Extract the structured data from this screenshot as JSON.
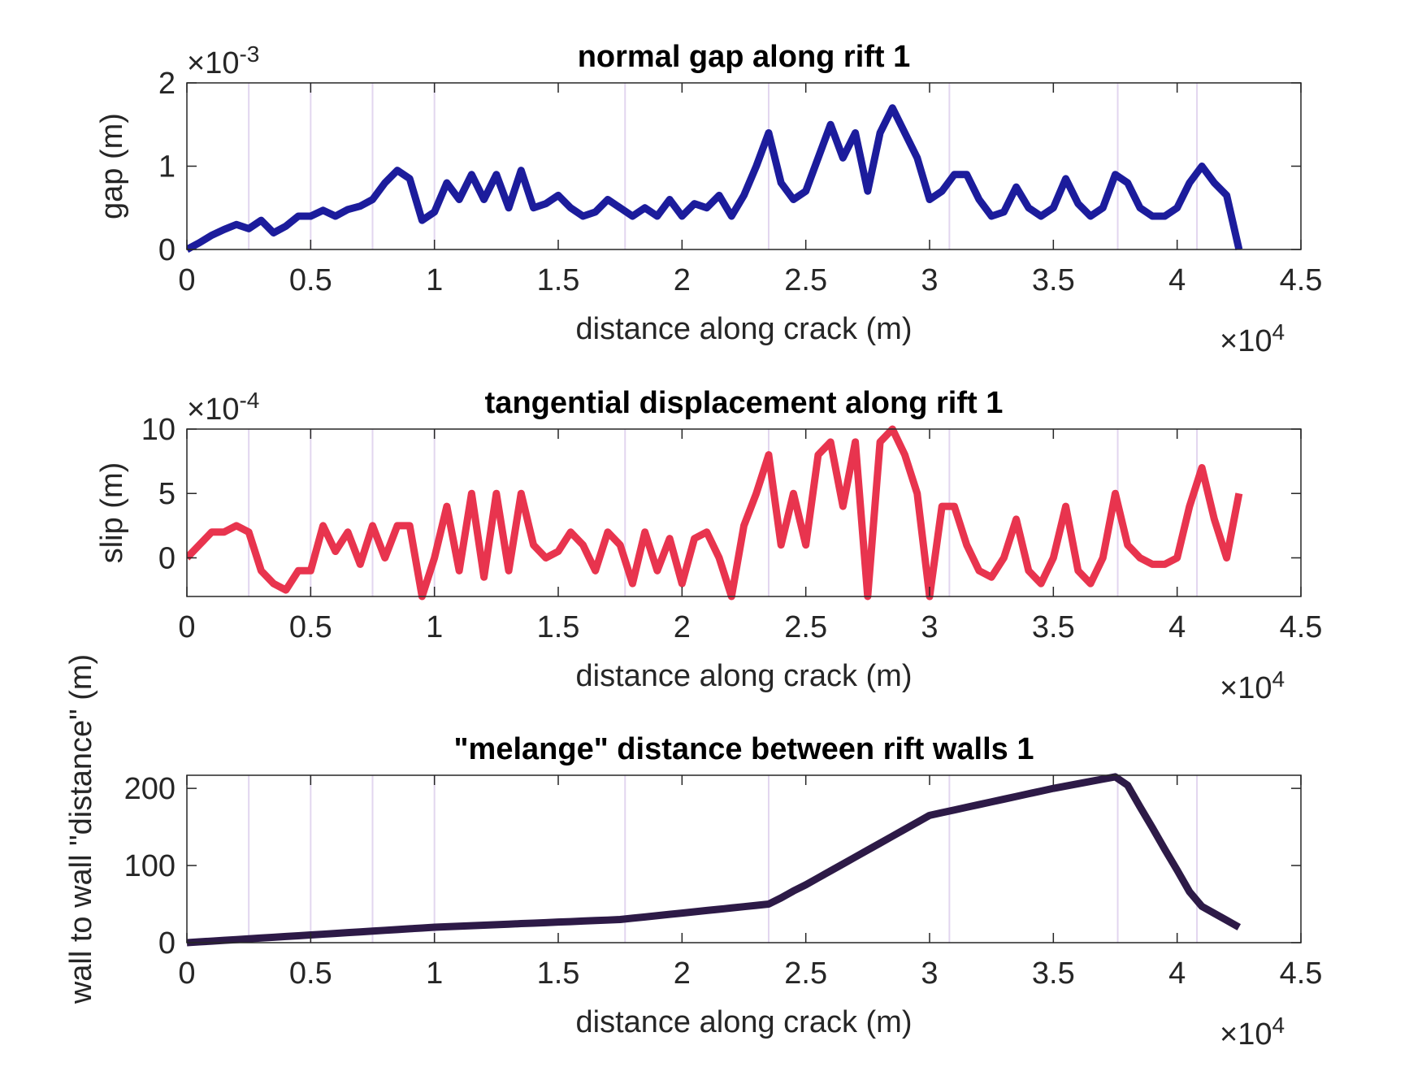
{
  "chart_data": [
    {
      "type": "line",
      "title": "normal gap along rift 1",
      "xlabel": "distance along crack (m)",
      "ylabel": "gap (m)",
      "x_exponent": {
        "base": "×10",
        "power": "4"
      },
      "y_exponent": {
        "base": "×10",
        "power": "-3"
      },
      "xlim": [
        0,
        45000
      ],
      "ylim": [
        0,
        0.002
      ],
      "xticks": [
        0,
        {
          "value": 5000,
          "label": "0.5"
        },
        {
          "value": 10000,
          "label": "1"
        },
        {
          "value": 15000,
          "label": "1.5"
        },
        {
          "value": 20000,
          "label": "2"
        },
        {
          "value": 25000,
          "label": "2.5"
        },
        {
          "value": 30000,
          "label": "3"
        },
        {
          "value": 35000,
          "label": "3.5"
        },
        {
          "value": 40000,
          "label": "4"
        },
        {
          "value": 45000,
          "label": "4.5"
        }
      ],
      "yticks": [
        0,
        {
          "value": 0.001,
          "label": "1"
        },
        {
          "value": 0.002,
          "label": "2"
        }
      ],
      "vlines": [
        2500,
        5000,
        7500,
        10000,
        17700,
        23500,
        30800,
        37600,
        40800
      ],
      "vline_color": "#e2d6ef",
      "x": [
        0,
        500,
        1000,
        1500,
        2000,
        2500,
        3000,
        3500,
        4000,
        4500,
        5000,
        5500,
        6000,
        6500,
        7000,
        7500,
        8000,
        8500,
        9000,
        9500,
        10000,
        10500,
        11000,
        11500,
        12000,
        12500,
        13000,
        13500,
        14000,
        14500,
        15000,
        15500,
        16000,
        16500,
        17000,
        17500,
        18000,
        18500,
        19000,
        19500,
        20000,
        20500,
        21000,
        21500,
        22000,
        22500,
        23000,
        23500,
        24000,
        24500,
        25000,
        25500,
        26000,
        26500,
        27000,
        27500,
        28000,
        28500,
        29000,
        29500,
        30000,
        30500,
        31000,
        31500,
        32000,
        32500,
        33000,
        33500,
        34000,
        34500,
        35000,
        35500,
        36000,
        36500,
        37000,
        37500,
        38000,
        38500,
        39000,
        39500,
        40000,
        40500,
        41000,
        41500,
        42000,
        42500
      ],
      "series": [
        {
          "color": "#1c1c9c",
          "values": [
            0,
            8e-05,
            0.00017,
            0.00024,
            0.0003,
            0.00025,
            0.00035,
            0.0002,
            0.00028,
            0.0004,
            0.0004,
            0.00047,
            0.0004,
            0.00048,
            0.00052,
            0.0006,
            0.0008,
            0.00095,
            0.00085,
            0.00035,
            0.00045,
            0.0008,
            0.0006,
            0.0009,
            0.0006,
            0.0009,
            0.0005,
            0.00095,
            0.0005,
            0.00055,
            0.00065,
            0.0005,
            0.0004,
            0.00045,
            0.0006,
            0.0005,
            0.0004,
            0.0005,
            0.0004,
            0.0006,
            0.0004,
            0.00055,
            0.0005,
            0.00065,
            0.0004,
            0.00065,
            0.001,
            0.0014,
            0.0008,
            0.0006,
            0.0007,
            0.0011,
            0.0015,
            0.0011,
            0.0014,
            0.0007,
            0.0014,
            0.0017,
            0.0014,
            0.0011,
            0.0006,
            0.0007,
            0.0009,
            0.0009,
            0.0006,
            0.0004,
            0.00045,
            0.00075,
            0.0005,
            0.0004,
            0.0005,
            0.00085,
            0.00055,
            0.0004,
            0.0005,
            0.0009,
            0.0008,
            0.0005,
            0.0004,
            0.0004,
            0.0005,
            0.0008,
            0.001,
            0.0008,
            0.00065,
            0
          ]
        }
      ]
    },
    {
      "type": "line",
      "title": "tangential displacement along rift 1",
      "xlabel": "distance along crack (m)",
      "ylabel": "slip (m)",
      "x_exponent": {
        "base": "×10",
        "power": "4"
      },
      "y_exponent": {
        "base": "×10",
        "power": "-4"
      },
      "xlim": [
        0,
        45000
      ],
      "ylim": [
        -0.0003,
        0.001
      ],
      "xticks": [
        0,
        {
          "value": 5000,
          "label": "0.5"
        },
        {
          "value": 10000,
          "label": "1"
        },
        {
          "value": 15000,
          "label": "1.5"
        },
        {
          "value": 20000,
          "label": "2"
        },
        {
          "value": 25000,
          "label": "2.5"
        },
        {
          "value": 30000,
          "label": "3"
        },
        {
          "value": 35000,
          "label": "3.5"
        },
        {
          "value": 40000,
          "label": "4"
        },
        {
          "value": 45000,
          "label": "4.5"
        }
      ],
      "yticks": [
        0,
        {
          "value": 0.0005,
          "label": "5"
        },
        {
          "value": 0.001,
          "label": "10"
        }
      ],
      "vlines": [
        2500,
        5000,
        7500,
        10000,
        17700,
        23500,
        30800,
        37600,
        40800
      ],
      "vline_color": "#e2d6ef",
      "x": [
        0,
        500,
        1000,
        1500,
        2000,
        2500,
        3000,
        3500,
        4000,
        4500,
        5000,
        5500,
        6000,
        6500,
        7000,
        7500,
        8000,
        8500,
        9000,
        9500,
        10000,
        10500,
        11000,
        11500,
        12000,
        12500,
        13000,
        13500,
        14000,
        14500,
        15000,
        15500,
        16000,
        16500,
        17000,
        17500,
        18000,
        18500,
        19000,
        19500,
        20000,
        20500,
        21000,
        21500,
        22000,
        22500,
        23000,
        23500,
        24000,
        24500,
        25000,
        25500,
        26000,
        26500,
        27000,
        27500,
        28000,
        28500,
        29000,
        29500,
        30000,
        30500,
        31000,
        31500,
        32000,
        32500,
        33000,
        33500,
        34000,
        34500,
        35000,
        35500,
        36000,
        36500,
        37000,
        37500,
        38000,
        38500,
        39000,
        39500,
        40000,
        40500,
        41000,
        41500,
        42000,
        42500
      ],
      "series": [
        {
          "color": "#e8344e",
          "values": [
            0,
            0.0001,
            0.0002,
            0.0002,
            0.00025,
            0.0002,
            -0.0001,
            -0.0002,
            -0.00025,
            -0.0001,
            -0.0001,
            0.00025,
            5e-05,
            0.0002,
            -5e-05,
            0.00025,
            0,
            0.00025,
            0.00025,
            -0.0003,
            0,
            0.0004,
            -0.0001,
            0.0005,
            -0.00015,
            0.0005,
            -0.0001,
            0.0005,
            0.0001,
            0,
            5e-05,
            0.0002,
            0.0001,
            -0.0001,
            0.0002,
            0.0001,
            -0.0002,
            0.0002,
            -0.0001,
            0.00015,
            -0.0002,
            0.00015,
            0.0002,
            0,
            -0.0003,
            0.00025,
            0.0005,
            0.0008,
            0.0001,
            0.0005,
            0.0001,
            0.0008,
            0.0009,
            0.0004,
            0.0009,
            -0.0003,
            0.0009,
            0.001,
            0.0008,
            0.0005,
            -0.0003,
            0.0004,
            0.0004,
            0.0001,
            -0.0001,
            -0.00015,
            0,
            0.0003,
            -0.0001,
            -0.0002,
            0,
            0.0004,
            -0.0001,
            -0.0002,
            0,
            0.0005,
            0.0001,
            0,
            -5e-05,
            -5e-05,
            0,
            0.0004,
            0.0007,
            0.0003,
            0,
            0.0005
          ]
        }
      ]
    },
    {
      "type": "line",
      "title": "\"melange\" distance between rift walls 1",
      "xlabel": "distance along crack (m)",
      "ylabel": "wall to wall \"distance\" (m)",
      "x_exponent": {
        "base": "×10",
        "power": "4"
      },
      "xlim": [
        0,
        45000
      ],
      "ylim": [
        0,
        217
      ],
      "xticks": [
        0,
        {
          "value": 5000,
          "label": "0.5"
        },
        {
          "value": 10000,
          "label": "1"
        },
        {
          "value": 15000,
          "label": "1.5"
        },
        {
          "value": 20000,
          "label": "2"
        },
        {
          "value": 25000,
          "label": "2.5"
        },
        {
          "value": 30000,
          "label": "3"
        },
        {
          "value": 35000,
          "label": "3.5"
        },
        {
          "value": 40000,
          "label": "4"
        },
        {
          "value": 45000,
          "label": "4.5"
        }
      ],
      "yticks": [
        0,
        100,
        200
      ],
      "vlines": [
        2500,
        5000,
        7500,
        10000,
        17700,
        23500,
        30800,
        37600,
        40800
      ],
      "vline_color": "#e2d6ef",
      "x": [
        0,
        500,
        1000,
        1500,
        2000,
        2500,
        3000,
        3500,
        4000,
        4500,
        5000,
        5500,
        6000,
        6500,
        7000,
        7500,
        8000,
        8500,
        9000,
        9500,
        10000,
        10500,
        11000,
        11500,
        12000,
        12500,
        13000,
        13500,
        14000,
        14500,
        15000,
        15500,
        16000,
        16500,
        17000,
        17500,
        18000,
        18500,
        19000,
        19500,
        20000,
        20500,
        21000,
        21500,
        22000,
        22500,
        23000,
        23500,
        24000,
        24500,
        25000,
        25500,
        26000,
        26500,
        27000,
        27500,
        28000,
        28500,
        29000,
        29500,
        30000,
        30500,
        31000,
        31500,
        32000,
        32500,
        33000,
        33500,
        34000,
        34500,
        35000,
        35500,
        36000,
        36500,
        37000,
        37500,
        38000,
        38500,
        39000,
        39500,
        40000,
        40500,
        41000,
        41500,
        42000,
        42500
      ],
      "series": [
        {
          "color": "#2d1a47",
          "values": [
            0,
            1,
            2,
            3,
            4,
            5,
            6,
            7,
            8,
            9,
            10,
            11,
            12,
            13,
            14,
            15,
            16,
            17,
            18,
            19,
            20,
            20.7,
            21.3,
            22,
            22.7,
            23.3,
            24,
            24.7,
            25.3,
            26,
            26.7,
            27.3,
            28,
            28.7,
            29.3,
            30,
            31.7,
            33.3,
            35,
            36.7,
            38.3,
            40,
            41.7,
            43.3,
            45,
            46.7,
            48.3,
            50,
            58,
            67,
            75,
            84,
            93,
            102,
            111,
            120,
            129,
            138,
            147,
            156,
            165,
            168.5,
            172,
            175.5,
            179,
            182.5,
            186,
            189.5,
            193,
            196.5,
            200,
            203,
            206,
            209,
            212,
            215,
            204,
            176,
            149,
            121,
            94,
            66,
            47,
            38,
            29,
            20
          ]
        }
      ]
    }
  ]
}
